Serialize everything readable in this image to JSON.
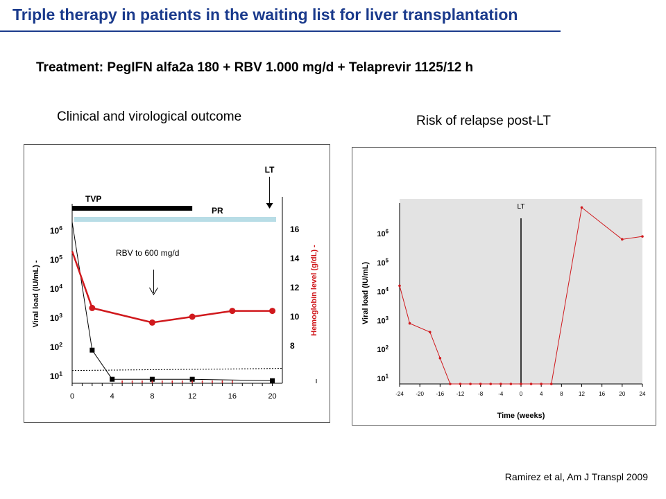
{
  "slide": {
    "title": "Triple therapy in patients in the waiting list for liver transplantation",
    "treatment": "Treatment: PegIFN alfa2a 180 + RBV 1.000 mg/d + Telaprevir 1125/12 h",
    "left_subtitle": "Clinical and virological outcome",
    "right_subtitle": "Risk of relapse post-LT",
    "citation": "Ramirez et al,  Am J Transpl 2009"
  },
  "colors": {
    "title": "#1a3a8c",
    "hemoglobin": "#d0191d",
    "viral": "#000000",
    "tvp_bar": "#000000",
    "pr_bar": "#b8dde6",
    "relapse_bg": "#e3e3e3"
  },
  "chart_data": [
    {
      "type": "line",
      "xticks": [
        "0",
        "4",
        "8",
        "12",
        "16",
        "20"
      ],
      "xlim": [
        0,
        21
      ],
      "ylabel": "Viral load (IU/mL)  -",
      "y2label": "Hemoglobin level (g/dL)  -",
      "yticks_log": [
        1,
        2,
        3,
        4,
        5,
        6
      ],
      "y2ticks": [
        "16",
        "14",
        "12",
        "10",
        "8"
      ],
      "y2ticks_values": [
        16,
        14,
        12,
        10,
        8
      ],
      "annotations": {
        "tvp": "TVP",
        "pr": "PR",
        "lt": "LT",
        "rbv": "RBV to 600 mg/d"
      },
      "tvp_weeks": [
        0,
        12
      ],
      "pr_weeks": [
        0,
        21
      ],
      "lt_week": 20,
      "rbv_week": 8,
      "series": [
        {
          "name": "Viral load",
          "x": [
            0,
            2,
            4,
            8,
            12,
            20
          ],
          "log10_values": [
            6.3,
            1.9,
            0.9,
            0.9,
            0.9,
            0.85
          ],
          "undetectable_weeks": [
            5,
            6,
            7,
            8,
            9,
            10,
            11,
            12,
            13,
            14,
            15,
            16
          ]
        },
        {
          "name": "Hemoglobin",
          "x": [
            0,
            2,
            8,
            12,
            16,
            20
          ],
          "values": [
            14.5,
            10.6,
            9.6,
            10,
            10.4,
            10.4
          ]
        }
      ],
      "detection_limit_log10": 1.2
    },
    {
      "type": "line",
      "xticks": [
        "-24",
        "-20",
        "-16",
        "-12",
        "-8",
        "-4",
        "0",
        "4",
        "8",
        "12",
        "16",
        "20",
        "24"
      ],
      "xlabel": "Time (weeks)",
      "ylabel": "Viral load (IU/mL)",
      "yticks_log": [
        1,
        2,
        3,
        4,
        5,
        6
      ],
      "lt_label": "LT",
      "lt_week": 0,
      "series": [
        {
          "name": "Viral load",
          "x": [
            -24,
            -22,
            -18,
            -16,
            -14,
            -12,
            -10,
            -8,
            -6,
            -4,
            -2,
            0,
            2,
            4,
            6,
            12,
            20,
            24
          ],
          "log10_values": [
            4.2,
            2.9,
            2.6,
            1.7,
            0.6,
            0.6,
            0.6,
            0.6,
            0.6,
            0.6,
            0.6,
            0.6,
            0.6,
            0.6,
            0.6,
            6.9,
            5.8,
            5.9
          ]
        }
      ]
    }
  ]
}
